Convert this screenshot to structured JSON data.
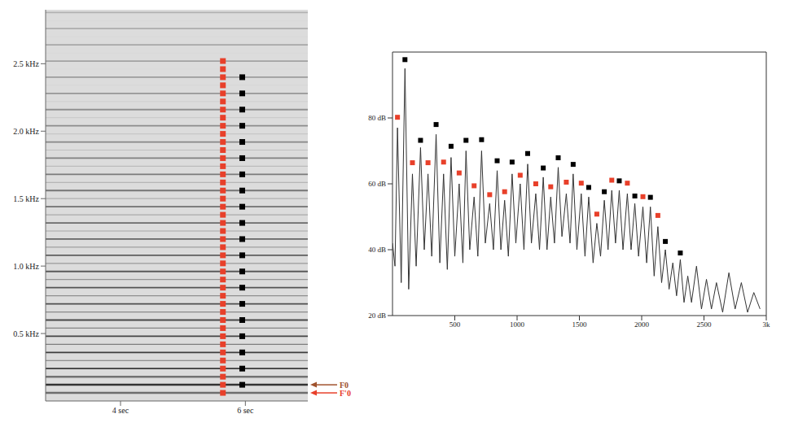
{
  "chart_data": [
    {
      "type": "scatter",
      "xlim": [
        2.8,
        7.0
      ],
      "xticks": [
        {
          "value": 4,
          "label": "4 sec"
        },
        {
          "value": 6,
          "label": "6 sec"
        }
      ],
      "ylim": [
        0,
        2.9
      ],
      "yticks": [
        {
          "value": 0.5,
          "label": "0.5 kHz"
        },
        {
          "value": 1.0,
          "label": "1.0 kHz"
        },
        {
          "value": 1.5,
          "label": "1.5 kHz"
        },
        {
          "value": 2.0,
          "label": "2.0 kHz"
        },
        {
          "value": 2.5,
          "label": "2.5 kHz"
        }
      ],
      "harmonics": [
        0.06,
        0.12,
        0.18,
        0.24,
        0.3,
        0.36,
        0.42,
        0.48,
        0.54,
        0.6,
        0.66,
        0.72,
        0.78,
        0.84,
        0.9,
        0.96,
        1.02,
        1.08,
        1.14,
        1.2,
        1.26,
        1.32,
        1.38,
        1.44,
        1.5,
        1.56,
        1.62,
        1.68,
        1.74,
        1.8,
        1.86,
        1.92,
        1.98,
        2.04,
        2.1,
        2.16,
        2.22,
        2.28,
        2.34,
        2.4,
        2.46,
        2.52,
        2.58,
        2.64,
        2.7,
        2.76,
        2.82,
        2.88
      ],
      "series": [
        {
          "color": "#e8402a",
          "marker": "square",
          "x": 5.64,
          "values": [
            0.06,
            0.12,
            0.18,
            0.24,
            0.3,
            0.36,
            0.42,
            0.48,
            0.54,
            0.6,
            0.66,
            0.72,
            0.78,
            0.84,
            0.9,
            0.96,
            1.02,
            1.08,
            1.14,
            1.2,
            1.26,
            1.32,
            1.38,
            1.44,
            1.5,
            1.56,
            1.62,
            1.68,
            1.74,
            1.8,
            1.86,
            1.92,
            1.98,
            2.04,
            2.1,
            2.16,
            2.22,
            2.28,
            2.34,
            2.4,
            2.46,
            2.52
          ]
        },
        {
          "color": "#000000",
          "marker": "square",
          "x": 5.95,
          "values": [
            0.12,
            0.24,
            0.36,
            0.48,
            0.6,
            0.72,
            0.84,
            0.96,
            1.08,
            1.2,
            1.32,
            1.44,
            1.56,
            1.68,
            1.8,
            1.92,
            2.04,
            2.16,
            2.28,
            2.4
          ]
        }
      ],
      "annotations": [
        {
          "text": "F0",
          "y": 0.12,
          "color": "#a0522d"
        },
        {
          "text": "F'0",
          "y": 0.06,
          "color": "#e8402a"
        }
      ]
    },
    {
      "type": "line",
      "xlim": [
        0,
        3000
      ],
      "xticks": [
        500,
        1000,
        1500,
        2000,
        2500,
        {
          "value": 3000,
          "label": "3k"
        }
      ],
      "ylim": [
        20,
        100
      ],
      "yticks": [
        {
          "value": 20,
          "label": "20 dB"
        },
        {
          "value": 40,
          "label": "40 dB"
        },
        {
          "value": 60,
          "label": "60 dB"
        },
        {
          "value": 80,
          "label": "80 dB"
        }
      ],
      "color": "#333333",
      "x": [
        0,
        20,
        40,
        70,
        100,
        130,
        160,
        190,
        225,
        255,
        285,
        315,
        350,
        380,
        410,
        440,
        470,
        500,
        535,
        565,
        590,
        620,
        655,
        685,
        715,
        745,
        780,
        810,
        840,
        870,
        900,
        930,
        960,
        990,
        1025,
        1055,
        1085,
        1115,
        1150,
        1180,
        1210,
        1240,
        1270,
        1300,
        1330,
        1360,
        1395,
        1425,
        1450,
        1480,
        1515,
        1545,
        1575,
        1610,
        1640,
        1670,
        1700,
        1730,
        1760,
        1790,
        1820,
        1850,
        1885,
        1915,
        1945,
        1975,
        2010,
        2040,
        2070,
        2100,
        2130,
        2160,
        2190,
        2220,
        2250,
        2280,
        2310,
        2340,
        2370,
        2400,
        2440,
        2480,
        2520,
        2560,
        2600,
        2650,
        2700,
        2750,
        2800,
        2850,
        2900,
        2950
      ],
      "values": [
        42,
        35,
        77,
        30,
        95,
        28,
        63,
        35,
        71,
        40,
        63,
        38,
        75,
        36,
        63,
        34,
        68,
        38,
        60,
        36,
        70,
        40,
        56,
        38,
        70,
        42,
        54,
        40,
        64,
        40,
        55,
        38,
        63,
        42,
        60,
        40,
        66,
        42,
        57,
        40,
        62,
        40,
        56,
        42,
        65,
        44,
        57,
        42,
        63,
        40,
        57,
        38,
        56,
        36,
        48,
        38,
        55,
        40,
        58,
        42,
        58,
        40,
        57,
        40,
        54,
        38,
        53,
        36,
        53,
        32,
        47,
        30,
        40,
        28,
        36,
        26,
        37,
        24,
        32,
        24,
        35,
        22,
        31,
        22,
        30,
        21,
        33,
        22,
        30,
        21,
        27,
        22
      ],
      "series": [
        {
          "type": "scatter",
          "color": "#e8402a",
          "marker": "square",
          "x": [
            40,
            160,
            285,
            410,
            535,
            655,
            780,
            900,
            1025,
            1150,
            1270,
            1395,
            1515,
            1640,
            1760,
            1885,
            2010,
            2130
          ],
          "values": [
            80.2,
            66.4,
            66.4,
            66.6,
            63.3,
            59.4,
            56.7,
            57.6,
            62.6,
            60.0,
            59.1,
            60.5,
            60.2,
            50.8,
            61.1,
            60.2,
            56.1,
            50.4
          ]
        },
        {
          "type": "scatter",
          "color": "#000000",
          "marker": "square",
          "x": [
            100,
            225,
            350,
            470,
            590,
            715,
            840,
            960,
            1085,
            1210,
            1330,
            1450,
            1575,
            1700,
            1820,
            1945,
            2070,
            2190,
            2310
          ],
          "values": [
            97.7,
            73.2,
            78.0,
            71.4,
            73.2,
            73.4,
            67.0,
            66.6,
            69.2,
            64.8,
            67.9,
            65.9,
            58.9,
            57.6,
            60.9,
            56.3,
            55.9,
            42.5,
            39.0
          ]
        }
      ]
    }
  ]
}
